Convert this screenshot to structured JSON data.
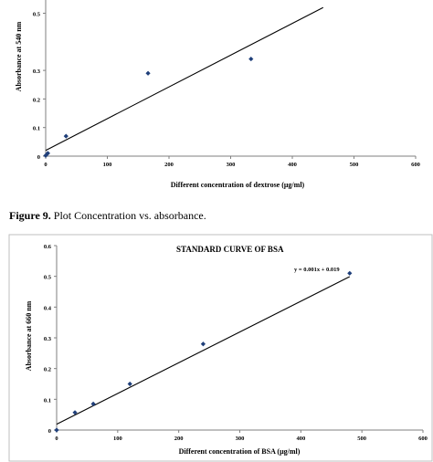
{
  "figure9": {
    "caption_label": "Figure 9.",
    "caption_text": " Plot Concentration vs. absorbance."
  },
  "chart_data": [
    {
      "type": "scatter",
      "title": "",
      "xlabel": "Different  concentration of dextrose (μg/ml)",
      "ylabel": "Absorbance at 540 nm",
      "xlim": [
        0,
        600
      ],
      "x_ticks": [
        "0",
        "100",
        "200",
        "300",
        "400",
        "500",
        "600"
      ],
      "y_ticks": [
        "0",
        "0.1",
        "0.2",
        "0.3",
        "0.5"
      ],
      "series": [
        {
          "x": [
            0,
            3.5,
            33,
            166,
            333
          ],
          "y": [
            0.002,
            0.01,
            0.07,
            0.29,
            0.34
          ]
        }
      ],
      "trendline": {
        "x": [
          0,
          450
        ],
        "y": [
          0.02,
          0.52
        ]
      },
      "marker_color": "#1f3f7a"
    },
    {
      "type": "scatter",
      "title": "STANDARD  CURVE OF BSA",
      "xlabel": "Different concentration of BSA (μg/ml)",
      "ylabel": "Absorbance at 660  nm",
      "xlim": [
        0,
        600
      ],
      "ylim": [
        0,
        0.6
      ],
      "x_ticks": [
        "0",
        "100",
        "200",
        "300",
        "400",
        "500",
        "600"
      ],
      "y_ticks": [
        "0",
        "0.1",
        "0.2",
        "0.3",
        "0.4",
        "0.5",
        "0.6"
      ],
      "series": [
        {
          "x": [
            0,
            30,
            60,
            120,
            240,
            480
          ],
          "y": [
            0,
            0.057,
            0.085,
            0.15,
            0.28,
            0.51
          ]
        }
      ],
      "trendline": {
        "x": [
          0,
          480
        ],
        "y": [
          0.019,
          0.499
        ]
      },
      "equation": "y = 0.001x + 0.019",
      "marker_color": "#1f3f7a"
    }
  ]
}
